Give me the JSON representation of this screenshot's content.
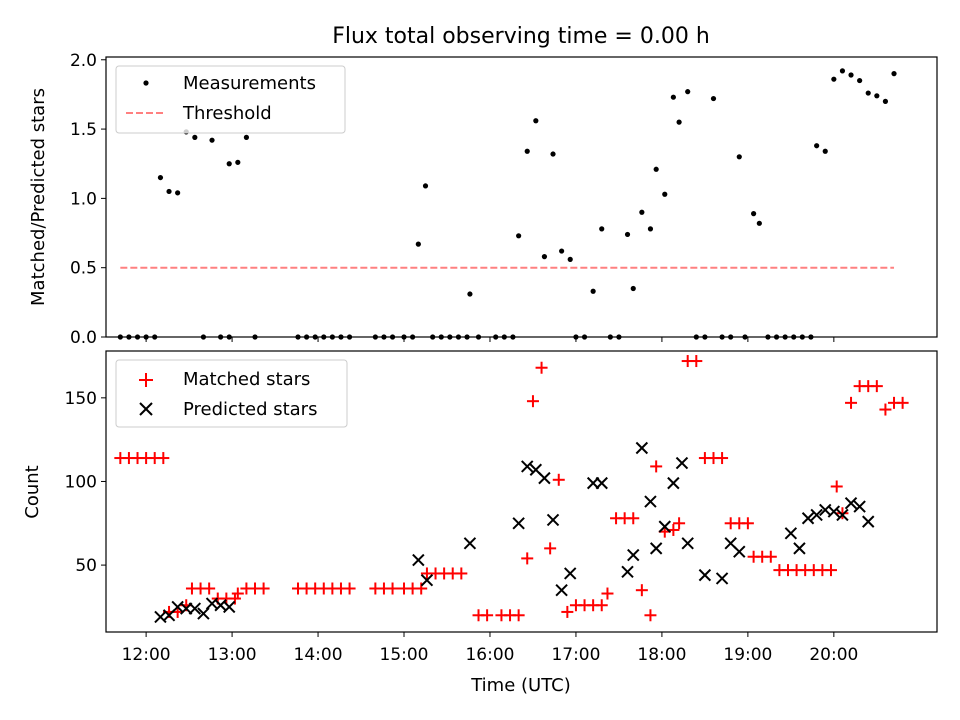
{
  "chart_data": [
    {
      "type": "scatter",
      "title": "Flux total observing time = 0.00 h",
      "xlabel": "",
      "ylabel": "Matched/Predicted stars",
      "xlim": [
        "11:32",
        "21:12"
      ],
      "ylim": [
        0.0,
        2.02
      ],
      "yticks": [
        "0.0",
        "0.5",
        "1.0",
        "1.5",
        "2.0"
      ],
      "legend_position": "upper-left",
      "series": [
        {
          "name": "Measurements",
          "style": "black-dot",
          "color": "#000000",
          "points": [
            [
              "11:42",
              0
            ],
            [
              "11:48",
              0
            ],
            [
              "11:54",
              0
            ],
            [
              "12:00",
              0
            ],
            [
              "12:06",
              0
            ],
            [
              "12:10",
              1.15
            ],
            [
              "12:16",
              1.05
            ],
            [
              "12:22",
              1.04
            ],
            [
              "12:28",
              1.48
            ],
            [
              "12:34",
              1.44
            ],
            [
              "12:40",
              0
            ],
            [
              "12:46",
              1.42
            ],
            [
              "12:52",
              0
            ],
            [
              "12:58",
              0
            ],
            [
              "12:58",
              1.25
            ],
            [
              "13:04",
              1.26
            ],
            [
              "13:10",
              1.44
            ],
            [
              "13:16",
              0
            ],
            [
              "13:46",
              0
            ],
            [
              "13:52",
              0
            ],
            [
              "13:58",
              0
            ],
            [
              "14:04",
              0
            ],
            [
              "14:10",
              0
            ],
            [
              "14:16",
              0
            ],
            [
              "14:22",
              0
            ],
            [
              "14:40",
              0
            ],
            [
              "14:46",
              0
            ],
            [
              "14:52",
              0
            ],
            [
              "15:00",
              0
            ],
            [
              "15:06",
              0
            ],
            [
              "15:10",
              0.67
            ],
            [
              "15:15",
              1.09
            ],
            [
              "15:20",
              0
            ],
            [
              "15:26",
              0
            ],
            [
              "15:32",
              0
            ],
            [
              "15:38",
              0
            ],
            [
              "15:44",
              0
            ],
            [
              "15:46",
              0.31
            ],
            [
              "15:52",
              0
            ],
            [
              "16:04",
              0
            ],
            [
              "16:10",
              0
            ],
            [
              "16:16",
              0
            ],
            [
              "16:20",
              0.73
            ],
            [
              "16:26",
              1.34
            ],
            [
              "16:32",
              1.56
            ],
            [
              "16:38",
              0.58
            ],
            [
              "16:44",
              1.32
            ],
            [
              "16:50",
              0.62
            ],
            [
              "16:56",
              0.56
            ],
            [
              "17:00",
              0
            ],
            [
              "17:06",
              0
            ],
            [
              "17:12",
              0.33
            ],
            [
              "17:18",
              0.78
            ],
            [
              "17:24",
              0
            ],
            [
              "17:30",
              0
            ],
            [
              "17:36",
              0.74
            ],
            [
              "17:40",
              0.35
            ],
            [
              "17:46",
              0.9
            ],
            [
              "17:52",
              0.78
            ],
            [
              "17:56",
              1.21
            ],
            [
              "18:02",
              1.03
            ],
            [
              "18:08",
              1.73
            ],
            [
              "18:12",
              1.55
            ],
            [
              "18:18",
              1.77
            ],
            [
              "18:24",
              0
            ],
            [
              "18:30",
              0
            ],
            [
              "18:36",
              1.72
            ],
            [
              "18:42",
              0
            ],
            [
              "18:48",
              0
            ],
            [
              "18:54",
              1.3
            ],
            [
              "18:58",
              0
            ],
            [
              "19:04",
              0.89
            ],
            [
              "19:08",
              0.82
            ],
            [
              "19:14",
              0
            ],
            [
              "19:20",
              0
            ],
            [
              "19:26",
              0
            ],
            [
              "19:32",
              0
            ],
            [
              "19:38",
              0
            ],
            [
              "19:44",
              0
            ],
            [
              "19:48",
              1.38
            ],
            [
              "19:54",
              1.34
            ],
            [
              "20:00",
              1.86
            ],
            [
              "20:06",
              1.92
            ],
            [
              "20:12",
              1.89
            ],
            [
              "20:18",
              1.85
            ],
            [
              "20:24",
              1.76
            ],
            [
              "20:30",
              1.74
            ],
            [
              "20:36",
              1.7
            ],
            [
              "20:42",
              1.9
            ]
          ]
        },
        {
          "name": "Threshold",
          "style": "dashed-line",
          "color": "#ff8080",
          "points": [
            [
              "11:42",
              0.5
            ],
            [
              "20:42",
              0.5
            ]
          ]
        }
      ]
    },
    {
      "type": "scatter",
      "title": "",
      "xlabel": "Time (UTC)",
      "ylabel": "Count",
      "xlim": [
        "11:32",
        "21:12"
      ],
      "ylim": [
        10,
        178
      ],
      "yticks": [
        "50",
        "100",
        "150"
      ],
      "xticks": [
        "12:00",
        "13:00",
        "14:00",
        "15:00",
        "16:00",
        "17:00",
        "18:00",
        "19:00",
        "20:00"
      ],
      "legend_position": "upper-left",
      "series": [
        {
          "name": "Matched stars",
          "style": "plus",
          "color": "#ff0000",
          "points": [
            [
              "11:42",
              114
            ],
            [
              "11:48",
              114
            ],
            [
              "11:54",
              114
            ],
            [
              "12:00",
              114
            ],
            [
              "12:06",
              114
            ],
            [
              "12:12",
              114
            ],
            [
              "12:16",
              22
            ],
            [
              "12:22",
              22
            ],
            [
              "12:28",
              26
            ],
            [
              "12:32",
              36
            ],
            [
              "12:38",
              36
            ],
            [
              "12:44",
              36
            ],
            [
              "12:50",
              30
            ],
            [
              "12:56",
              30
            ],
            [
              "13:02",
              30
            ],
            [
              "13:04",
              33
            ],
            [
              "13:10",
              36
            ],
            [
              "13:16",
              36
            ],
            [
              "13:22",
              36
            ],
            [
              "13:46",
              36
            ],
            [
              "13:52",
              36
            ],
            [
              "13:58",
              36
            ],
            [
              "14:04",
              36
            ],
            [
              "14:10",
              36
            ],
            [
              "14:16",
              36
            ],
            [
              "14:22",
              36
            ],
            [
              "14:40",
              36
            ],
            [
              "14:46",
              36
            ],
            [
              "14:52",
              36
            ],
            [
              "15:00",
              36
            ],
            [
              "15:06",
              36
            ],
            [
              "15:12",
              36
            ],
            [
              "15:16",
              45
            ],
            [
              "15:22",
              45
            ],
            [
              "15:28",
              45
            ],
            [
              "15:34",
              45
            ],
            [
              "15:40",
              45
            ],
            [
              "15:52",
              20
            ],
            [
              "15:58",
              20
            ],
            [
              "16:08",
              20
            ],
            [
              "16:14",
              20
            ],
            [
              "16:20",
              20
            ],
            [
              "16:26",
              54
            ],
            [
              "16:30",
              148
            ],
            [
              "16:36",
              168
            ],
            [
              "16:42",
              60
            ],
            [
              "16:48",
              101
            ],
            [
              "16:54",
              22
            ],
            [
              "17:00",
              26
            ],
            [
              "17:06",
              26
            ],
            [
              "17:12",
              26
            ],
            [
              "17:18",
              26
            ],
            [
              "17:22",
              33
            ],
            [
              "17:28",
              78
            ],
            [
              "17:34",
              78
            ],
            [
              "17:40",
              78
            ],
            [
              "17:46",
              35
            ],
            [
              "17:52",
              20
            ],
            [
              "17:56",
              109
            ],
            [
              "18:02",
              70
            ],
            [
              "18:08",
              71
            ],
            [
              "18:12",
              75
            ],
            [
              "18:18",
              172
            ],
            [
              "18:24",
              172
            ],
            [
              "18:30",
              114
            ],
            [
              "18:36",
              114
            ],
            [
              "18:42",
              114
            ],
            [
              "18:48",
              75
            ],
            [
              "18:54",
              75
            ],
            [
              "19:00",
              75
            ],
            [
              "19:04",
              55
            ],
            [
              "19:10",
              55
            ],
            [
              "19:16",
              55
            ],
            [
              "19:22",
              47
            ],
            [
              "19:28",
              47
            ],
            [
              "19:34",
              47
            ],
            [
              "19:40",
              47
            ],
            [
              "19:46",
              47
            ],
            [
              "19:52",
              47
            ],
            [
              "19:58",
              47
            ],
            [
              "20:02",
              97
            ],
            [
              "20:06",
              81
            ],
            [
              "20:12",
              147
            ],
            [
              "20:18",
              157
            ],
            [
              "20:24",
              157
            ],
            [
              "20:30",
              157
            ],
            [
              "20:36",
              143
            ],
            [
              "20:42",
              147
            ],
            [
              "20:48",
              147
            ]
          ]
        },
        {
          "name": "Predicted stars",
          "style": "cross",
          "color": "#000000",
          "points": [
            [
              "12:10",
              19
            ],
            [
              "12:16",
              20
            ],
            [
              "12:22",
              25
            ],
            [
              "12:28",
              24
            ],
            [
              "12:34",
              24
            ],
            [
              "12:40",
              21
            ],
            [
              "12:46",
              27
            ],
            [
              "12:52",
              26
            ],
            [
              "12:58",
              25
            ],
            [
              "15:10",
              53
            ],
            [
              "15:16",
              41
            ],
            [
              "15:46",
              63
            ],
            [
              "16:20",
              75
            ],
            [
              "16:26",
              109
            ],
            [
              "16:32",
              107
            ],
            [
              "16:38",
              102
            ],
            [
              "16:44",
              77
            ],
            [
              "16:50",
              35
            ],
            [
              "16:56",
              45
            ],
            [
              "17:12",
              99
            ],
            [
              "17:18",
              99
            ],
            [
              "17:36",
              46
            ],
            [
              "17:40",
              56
            ],
            [
              "17:46",
              120
            ],
            [
              "17:52",
              88
            ],
            [
              "17:56",
              60
            ],
            [
              "18:02",
              73
            ],
            [
              "18:08",
              99
            ],
            [
              "18:14",
              111
            ],
            [
              "18:18",
              63
            ],
            [
              "18:30",
              44
            ],
            [
              "18:42",
              42
            ],
            [
              "18:48",
              63
            ],
            [
              "18:54",
              58
            ],
            [
              "19:30",
              69
            ],
            [
              "19:36",
              60
            ],
            [
              "19:42",
              78
            ],
            [
              "19:48",
              80
            ],
            [
              "19:54",
              83
            ],
            [
              "20:00",
              82
            ],
            [
              "20:06",
              80
            ],
            [
              "20:12",
              87
            ],
            [
              "20:18",
              85
            ],
            [
              "20:24",
              76
            ]
          ]
        }
      ]
    }
  ]
}
